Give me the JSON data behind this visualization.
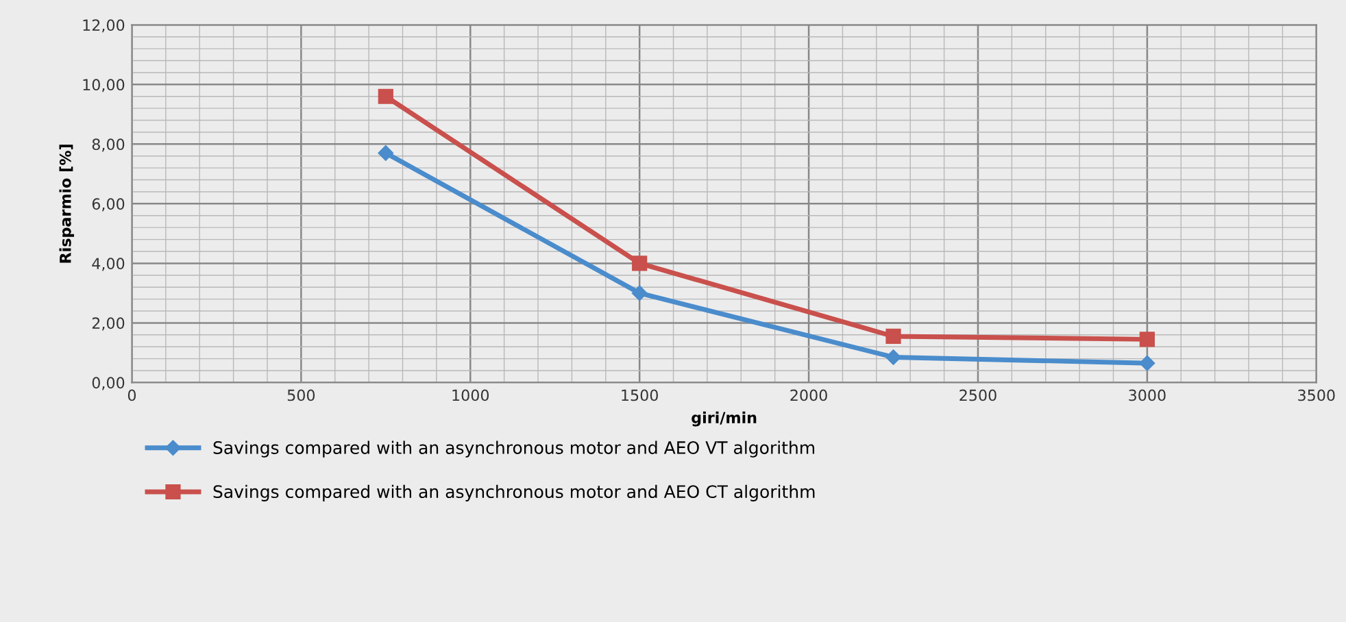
{
  "chart_data": {
    "type": "line",
    "xlabel": "giri/min",
    "ylabel": "Risparmio [%]",
    "x": [
      750,
      1500,
      2250,
      3000
    ],
    "series": [
      {
        "name": "Savings compared with an asynchronous motor and AEO VT algorithm",
        "color": "#4a8ccc",
        "marker": "diamond",
        "values": [
          7.7,
          3.0,
          0.85,
          0.65
        ]
      },
      {
        "name": "Savings compared with an asynchronous motor and AEO CT algorithm",
        "color": "#c9504c",
        "marker": "square",
        "values": [
          9.6,
          4.0,
          1.55,
          1.45
        ]
      }
    ],
    "xlim": [
      0,
      3500
    ],
    "xticks": [
      0,
      500,
      1000,
      1500,
      2000,
      2500,
      3000,
      3500
    ],
    "ylim": [
      0,
      12
    ],
    "yticks": [
      {
        "value": 0,
        "label": "0,00"
      },
      {
        "value": 2,
        "label": "2,00"
      },
      {
        "value": 4,
        "label": "4,00"
      },
      {
        "value": 6,
        "label": "6,00"
      },
      {
        "value": 8,
        "label": "8,00"
      },
      {
        "value": 10,
        "label": "10,00"
      },
      {
        "value": 12,
        "label": "12,00"
      }
    ],
    "grid": true,
    "legend": "bottom",
    "line_style": "solid"
  }
}
